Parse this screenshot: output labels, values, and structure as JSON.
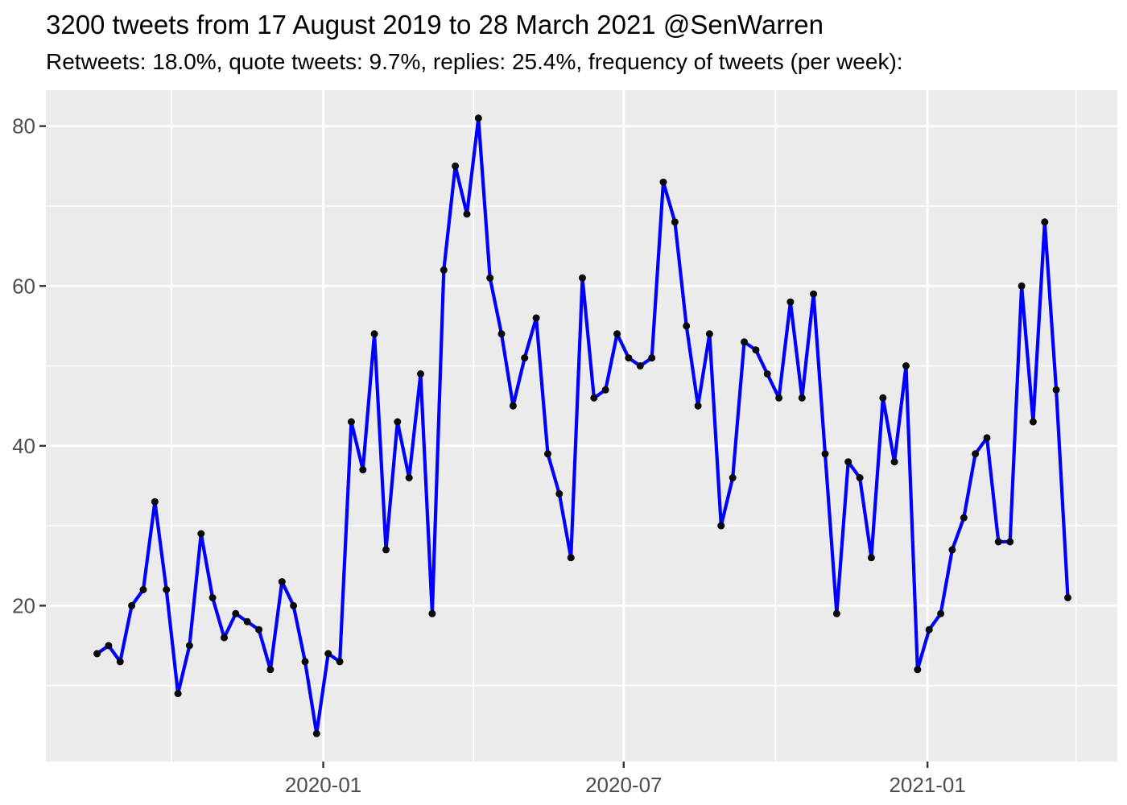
{
  "header": {
    "title": "3200 tweets from 17 August 2019 to 28 March 2021 @SenWarren",
    "subtitle": "Retweets: 18.0%, quote tweets: 9.7%, replies: 25.4%, frequency of tweets (per week):"
  },
  "stats": {
    "total_tweets": "3200",
    "retweets_pct": "18.0%",
    "quote_tweets_pct": "9.7%",
    "replies_pct": "25.4%"
  },
  "chart_data": {
    "type": "line",
    "series_name": "tweets per week",
    "x": [
      "2019-08-17",
      "2019-08-24",
      "2019-08-31",
      "2019-09-07",
      "2019-09-14",
      "2019-09-21",
      "2019-09-28",
      "2019-10-05",
      "2019-10-12",
      "2019-10-19",
      "2019-10-26",
      "2019-11-02",
      "2019-11-09",
      "2019-11-16",
      "2019-11-23",
      "2019-11-30",
      "2019-12-07",
      "2019-12-14",
      "2019-12-21",
      "2019-12-28",
      "2020-01-04",
      "2020-01-11",
      "2020-01-18",
      "2020-01-25",
      "2020-02-01",
      "2020-02-08",
      "2020-02-15",
      "2020-02-22",
      "2020-02-29",
      "2020-03-07",
      "2020-03-14",
      "2020-03-21",
      "2020-03-28",
      "2020-04-04",
      "2020-04-11",
      "2020-04-18",
      "2020-04-25",
      "2020-05-02",
      "2020-05-09",
      "2020-05-16",
      "2020-05-23",
      "2020-05-30",
      "2020-06-06",
      "2020-06-13",
      "2020-06-20",
      "2020-06-27",
      "2020-07-04",
      "2020-07-11",
      "2020-07-18",
      "2020-07-25",
      "2020-08-01",
      "2020-08-08",
      "2020-08-15",
      "2020-08-22",
      "2020-08-29",
      "2020-09-05",
      "2020-09-12",
      "2020-09-19",
      "2020-09-26",
      "2020-10-03",
      "2020-10-10",
      "2020-10-17",
      "2020-10-24",
      "2020-10-31",
      "2020-11-07",
      "2020-11-14",
      "2020-11-21",
      "2020-11-28",
      "2020-12-05",
      "2020-12-12",
      "2020-12-19",
      "2020-12-26",
      "2021-01-02",
      "2021-01-09",
      "2021-01-16",
      "2021-01-23",
      "2021-01-30",
      "2021-02-06",
      "2021-02-13",
      "2021-02-20",
      "2021-02-27",
      "2021-03-06",
      "2021-03-13",
      "2021-03-20",
      "2021-03-27"
    ],
    "values": [
      14,
      15,
      13,
      20,
      22,
      33,
      22,
      9,
      15,
      29,
      21,
      16,
      19,
      18,
      17,
      12,
      23,
      20,
      13,
      4,
      14,
      13,
      43,
      37,
      54,
      27,
      43,
      36,
      49,
      19,
      62,
      75,
      69,
      81,
      61,
      54,
      45,
      51,
      56,
      39,
      34,
      26,
      61,
      46,
      47,
      54,
      51,
      50,
      51,
      73,
      68,
      55,
      45,
      54,
      30,
      36,
      53,
      52,
      49,
      46,
      58,
      46,
      59,
      39,
      19,
      38,
      36,
      26,
      46,
      38,
      50,
      12,
      17,
      19,
      27,
      31,
      39,
      41,
      28,
      28,
      60,
      43,
      68,
      47,
      21
    ],
    "title": "3200 tweets from 17 August 2019 to 28 March 2021 @SenWarren",
    "subtitle": "Retweets: 18.0%, quote tweets: 9.7%, replies: 25.4%, frequency of tweets (per week):",
    "xlabel": "",
    "ylabel": "",
    "ylim": [
      0.5,
      84.5
    ],
    "xlim": [
      "2019-07-17",
      "2021-04-26"
    ],
    "y_ticks": [
      {
        "value": 20,
        "label": "20"
      },
      {
        "value": 40,
        "label": "40"
      },
      {
        "value": 60,
        "label": "60"
      },
      {
        "value": 80,
        "label": "80"
      }
    ],
    "y_minor_ticks": [
      10,
      30,
      50,
      70
    ],
    "x_ticks": [
      {
        "date": "2020-01-01",
        "label": "2020-01"
      },
      {
        "date": "2020-07-01",
        "label": "2020-07"
      },
      {
        "date": "2021-01-01",
        "label": "2021-01"
      }
    ],
    "x_minor_ticks": [
      "2019-10-01",
      "2020-04-01",
      "2020-10-01",
      "2021-04-01"
    ],
    "grid": true,
    "legend": "none",
    "colors": {
      "line": "#0000FF",
      "point": "#0a0a0a",
      "panel_bg": "#ebebeb",
      "grid": "#ffffff",
      "axis_text": "#4d4d4d",
      "tick_mark": "#333333",
      "title_text": "#000000",
      "background": "#ffffff"
    }
  }
}
